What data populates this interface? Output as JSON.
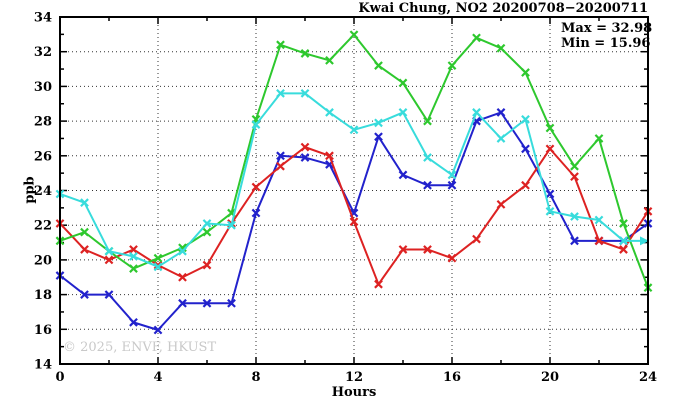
{
  "page": {
    "title": "Kwai Chung, NO2 20200708−20200711",
    "max_label": "Max = 32.98",
    "min_label": "Min = 15.96",
    "watermark": "© 2025, ENVF, HKUST",
    "xlabel": "Hours",
    "ylabel": "ppb"
  },
  "chart_data": {
    "type": "line",
    "title": "Kwai Chung, NO2 20200708−20200711",
    "xlabel": "Hours",
    "ylabel": "ppb",
    "xlim": [
      0,
      24
    ],
    "ylim": [
      14,
      34
    ],
    "x_major_tick": 4,
    "x_minor_tick": 2,
    "y_major_tick": 2,
    "y_minor_tick": 1,
    "grid": "dotted",
    "legend_position": "none",
    "stats": {
      "max": 32.98,
      "min": 15.96
    },
    "x": [
      0,
      1,
      2,
      3,
      4,
      5,
      6,
      7,
      8,
      9,
      10,
      11,
      12,
      13,
      14,
      15,
      16,
      17,
      18,
      19,
      20,
      21,
      22,
      23,
      24
    ],
    "series": [
      {
        "name": "blue-series",
        "color": "#2222cc",
        "marker": "x",
        "arrow_end": false,
        "values": [
          19.1,
          18.0,
          18.0,
          16.4,
          15.96,
          17.5,
          17.5,
          17.5,
          22.7,
          26.0,
          25.9,
          25.5,
          22.7,
          27.1,
          24.9,
          24.3,
          24.3,
          28.0,
          28.5,
          26.4,
          23.8,
          21.1,
          21.1,
          21.1,
          22.1
        ]
      },
      {
        "name": "red-series",
        "color": "#dd2222",
        "marker": "x",
        "arrow_end": false,
        "values": [
          22.1,
          20.6,
          20.0,
          20.6,
          19.7,
          19.0,
          19.7,
          22.1,
          24.2,
          25.4,
          26.5,
          26.0,
          22.2,
          18.6,
          20.6,
          20.6,
          20.1,
          21.2,
          23.2,
          24.3,
          26.4,
          24.8,
          21.1,
          20.6,
          22.8
        ]
      },
      {
        "name": "green-series",
        "color": "#2ec82e",
        "marker": "x",
        "arrow_end": false,
        "values": [
          21.1,
          21.6,
          20.5,
          19.5,
          20.1,
          20.7,
          21.6,
          22.7,
          28.1,
          32.4,
          31.9,
          31.5,
          32.98,
          31.2,
          30.2,
          28.0,
          31.2,
          32.8,
          32.2,
          30.8,
          27.6,
          25.4,
          27.0,
          22.1,
          18.4
        ]
      },
      {
        "name": "cyan-series",
        "color": "#38dcdc",
        "marker": "x",
        "arrow_end": true,
        "values": [
          23.8,
          23.3,
          20.5,
          20.2,
          19.6,
          20.5,
          22.1,
          22.0,
          27.8,
          29.6,
          29.6,
          28.5,
          27.5,
          27.9,
          28.5,
          25.9,
          24.9,
          28.5,
          27.0,
          28.1,
          22.8,
          22.5,
          22.3,
          21.1,
          21.1
        ]
      }
    ]
  }
}
